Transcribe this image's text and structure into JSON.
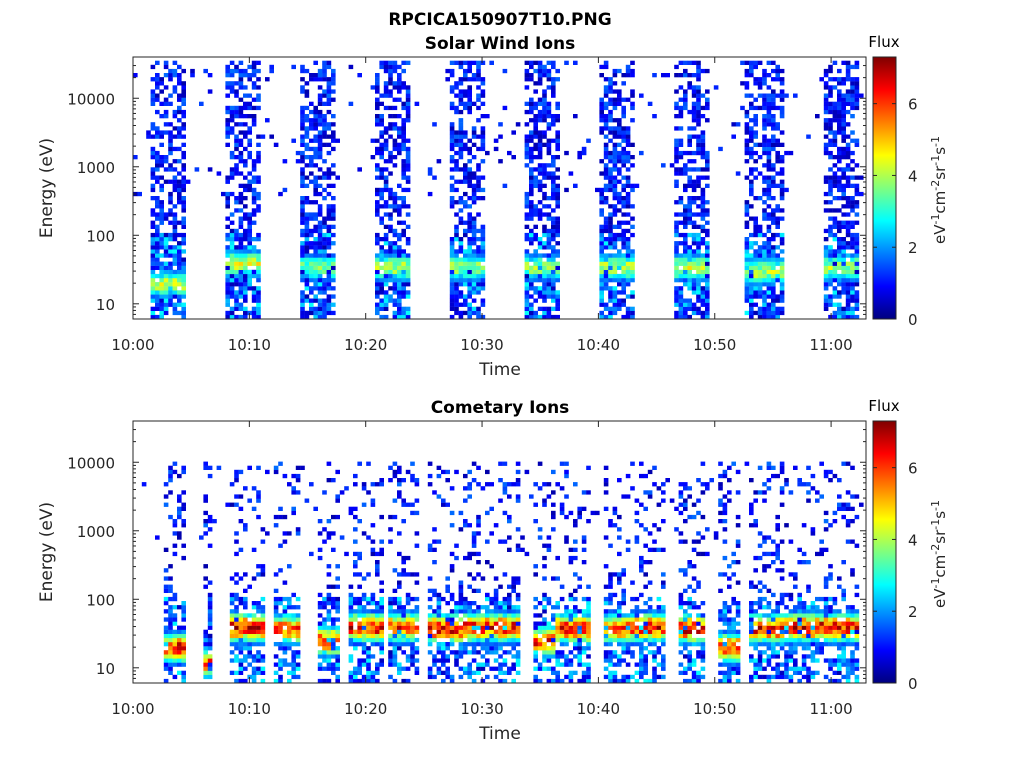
{
  "figure_title": "RPCICA150907T10.PNG",
  "colorscale": [
    "#00007f",
    "#0000ff",
    "#007fff",
    "#00ffff",
    "#7fff7f",
    "#ffff00",
    "#ff7f00",
    "#ff0000",
    "#7f0000"
  ],
  "chart_data": [
    {
      "type": "heatmap",
      "title": "Solar Wind Ions",
      "xlabel": "Time",
      "ylabel": "Energy (eV)",
      "xlim": [
        "10:00",
        "11:03"
      ],
      "x_ticks": [
        "10:00",
        "10:10",
        "10:20",
        "10:30",
        "10:40",
        "10:50",
        "11:00"
      ],
      "y_scale": "log",
      "ylim": [
        6,
        40000
      ],
      "y_ticks": [
        10,
        100,
        1000,
        10000
      ],
      "y_tick_labels": [
        "10",
        "100",
        "1000",
        "10000"
      ],
      "colorbar": {
        "title": "Flux",
        "unit": "eV-1cm-2sr-1s-1",
        "range": [
          0,
          7.3
        ],
        "ticks": [
          0,
          2,
          4,
          6
        ],
        "tick_labels": [
          "0",
          "2",
          "4",
          "6"
        ]
      },
      "scans": [
        {
          "start": "10:01.6",
          "end": "10:04.5",
          "peak_energy_eV": 20,
          "peak_flux": 4.3
        },
        {
          "start": "10:08.0",
          "end": "10:11.1",
          "peak_energy_eV": 40,
          "peak_flux": 4.6
        },
        {
          "start": "10:14.4",
          "end": "10:17.5",
          "peak_energy_eV": 35,
          "peak_flux": 3.8
        },
        {
          "start": "10:20.8",
          "end": "10:24.0",
          "peak_energy_eV": 35,
          "peak_flux": 4.3
        },
        {
          "start": "10:27.2",
          "end": "10:30.5",
          "peak_energy_eV": 35,
          "peak_flux": 4.2
        },
        {
          "start": "10:33.8",
          "end": "10:36.7",
          "peak_energy_eV": 35,
          "peak_flux": 4.0
        },
        {
          "start": "10:40.2",
          "end": "10:43.2",
          "peak_energy_eV": 35,
          "peak_flux": 4.4
        },
        {
          "start": "10:46.5",
          "end": "10:49.7",
          "peak_energy_eV": 35,
          "peak_flux": 4.5
        },
        {
          "start": "10:52.8",
          "end": "10:56.1",
          "peak_energy_eV": 30,
          "peak_flux": 4.3
        },
        {
          "start": "10:59.5",
          "end": "11:02.5",
          "peak_energy_eV": 35,
          "peak_flux": 4.2
        }
      ],
      "background_flux": 1.0,
      "noise_max_energy_eV": 40000
    },
    {
      "type": "heatmap",
      "title": "Cometary Ions",
      "xlabel": "Time",
      "ylabel": "Energy (eV)",
      "xlim": [
        "10:00",
        "11:03"
      ],
      "x_ticks": [
        "10:00",
        "10:10",
        "10:20",
        "10:30",
        "10:40",
        "10:50",
        "11:00"
      ],
      "y_scale": "log",
      "ylim": [
        6,
        40000
      ],
      "y_ticks": [
        10,
        100,
        1000,
        10000
      ],
      "y_tick_labels": [
        "10",
        "100",
        "1000",
        "10000"
      ],
      "colorbar": {
        "title": "Flux",
        "unit": "eV-1cm-2sr-1s-1",
        "range": [
          0,
          7.3
        ],
        "ticks": [
          0,
          2,
          4,
          6
        ],
        "tick_labels": [
          "0",
          "2",
          "4",
          "6"
        ]
      },
      "scans": [
        {
          "start": "10:02.5",
          "end": "10:04.5",
          "peak_energy_eV": 20,
          "peak_flux": 6.8
        },
        {
          "start": "10:06.2",
          "end": "10:07.0",
          "peak_energy_eV": 12,
          "peak_flux": 6.5
        },
        {
          "start": "10:08.5",
          "end": "10:11.5",
          "peak_energy_eV": 40,
          "peak_flux": 6.9
        },
        {
          "start": "10:12.0",
          "end": "10:14.5",
          "peak_energy_eV": 38,
          "peak_flux": 6.2
        },
        {
          "start": "10:16.0",
          "end": "10:18.0",
          "peak_energy_eV": 25,
          "peak_flux": 6.3
        },
        {
          "start": "10:18.5",
          "end": "10:21.5",
          "peak_energy_eV": 40,
          "peak_flux": 6.8
        },
        {
          "start": "10:22.0",
          "end": "10:24.5",
          "peak_energy_eV": 40,
          "peak_flux": 6.4
        },
        {
          "start": "10:25.5",
          "end": "10:28.5",
          "peak_energy_eV": 38,
          "peak_flux": 6.9
        },
        {
          "start": "10:28.5",
          "end": "10:31.5",
          "peak_energy_eV": 40,
          "peak_flux": 6.7
        },
        {
          "start": "10:31.5",
          "end": "10:33.5",
          "peak_energy_eV": 40,
          "peak_flux": 6.8
        },
        {
          "start": "10:34.5",
          "end": "10:36.5",
          "peak_energy_eV": 25,
          "peak_flux": 6.6
        },
        {
          "start": "10:36.5",
          "end": "10:39.5",
          "peak_energy_eV": 38,
          "peak_flux": 6.9
        },
        {
          "start": "10:40.5",
          "end": "10:43.0",
          "peak_energy_eV": 38,
          "peak_flux": 6.5
        },
        {
          "start": "10:43.0",
          "end": "10:46.0",
          "peak_energy_eV": 40,
          "peak_flux": 6.8
        },
        {
          "start": "10:47.0",
          "end": "10:49.5",
          "peak_energy_eV": 38,
          "peak_flux": 6.9
        },
        {
          "start": "10:50.5",
          "end": "10:52.5",
          "peak_energy_eV": 20,
          "peak_flux": 6.8
        },
        {
          "start": "10:53.0",
          "end": "10:56.5",
          "peak_energy_eV": 38,
          "peak_flux": 6.8
        },
        {
          "start": "10:56.5",
          "end": "10:59.5",
          "peak_energy_eV": 40,
          "peak_flux": 6.9
        },
        {
          "start": "10:59.5",
          "end": "11:02.5",
          "peak_energy_eV": 40,
          "peak_flux": 6.7
        }
      ],
      "background_flux": 1.0,
      "noise_max_energy_eV": 12000
    }
  ]
}
